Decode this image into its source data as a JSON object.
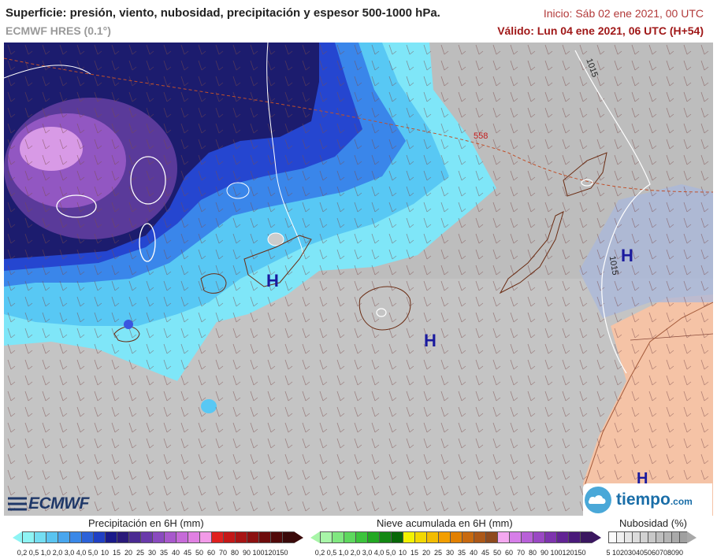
{
  "header": {
    "title": "Superficie: presión, viento, nubosidad, precipitación y espesor 500-1000 hPa.",
    "model": "ECMWF HRES (0.1°)",
    "init": "Inicio: Sáb 02 ene 2021, 00 UTC",
    "valid": "Válido: Lun 04 ene 2021, 06 UTC (H+54)"
  },
  "map": {
    "isobar_labels": [
      "1015",
      "1015"
    ],
    "thickness_label": "558",
    "high_labels": [
      "H",
      "H",
      "H",
      "H"
    ],
    "colors": {
      "sea_cloud": "#bdbdbd",
      "land_africa": "#f5c3a6",
      "precip_heavy": "#1c1c6e",
      "precip_violet": "#9257c2",
      "precip_light": "#7fe6f8",
      "isobar": "#ffffff",
      "thickness": "#c0502a",
      "high": "#1a1a9e",
      "coast": "#6b2d14"
    }
  },
  "logos": {
    "ecmwf": "ECMWF",
    "tiempo": "tiempo",
    "tiempo_suffix": ".com"
  },
  "legend_precip": {
    "title": "Precipitación en 6H (mm)",
    "ticks": [
      "0,2",
      "0,5",
      "1,0",
      "2,0",
      "3,0",
      "4,0",
      "5,0",
      "10",
      "15",
      "20",
      "25",
      "30",
      "35",
      "40",
      "45",
      "50",
      "60",
      "70",
      "80",
      "90",
      "100",
      "120",
      "150"
    ],
    "colors": [
      "#8ef4f4",
      "#74def2",
      "#5ac4f0",
      "#49a6ee",
      "#3a88e8",
      "#2c62d8",
      "#2040c4",
      "#1a1a8a",
      "#2a1a7a",
      "#4a2a92",
      "#6a3aaa",
      "#8a4abf",
      "#a858cc",
      "#c66ad8",
      "#e080e2",
      "#f29ae8",
      "#e02020",
      "#c41818",
      "#a81414",
      "#8c1010",
      "#6e0c0c",
      "#520a0a",
      "#3a0a0a"
    ]
  },
  "legend_snow": {
    "title": "Nieve acumulada en 6H (mm)",
    "ticks": [
      "0,2",
      "0,5",
      "1,0",
      "2,0",
      "3,0",
      "4,0",
      "5,0",
      "10",
      "15",
      "20",
      "25",
      "30",
      "35",
      "40",
      "45",
      "50",
      "60",
      "70",
      "80",
      "90",
      "100",
      "120",
      "150"
    ],
    "colors": [
      "#a8f5a8",
      "#80e880",
      "#5ed85e",
      "#3cc43c",
      "#22a822",
      "#128812",
      "#086808",
      "#f2f200",
      "#f2d800",
      "#f2bc00",
      "#f29e00",
      "#e28000",
      "#c86a10",
      "#ac5818",
      "#8e4a1e",
      "#f4a8f0",
      "#d67ee8",
      "#b860d8",
      "#9a48c4",
      "#7e34ae",
      "#622494",
      "#4a1a7a",
      "#3b1760"
    ]
  },
  "legend_cloud": {
    "title": "Nubosidad (%)",
    "ticks": [
      "5",
      "10",
      "20",
      "30",
      "40",
      "50",
      "60",
      "70",
      "80",
      "90"
    ],
    "colors": [
      "#fafafa",
      "#f0f0f0",
      "#e6e6e6",
      "#dcdcdc",
      "#d2d2d2",
      "#c8c8c8",
      "#bebebe",
      "#b4b4b4",
      "#aaaaaa",
      "#a0a0a0"
    ]
  }
}
